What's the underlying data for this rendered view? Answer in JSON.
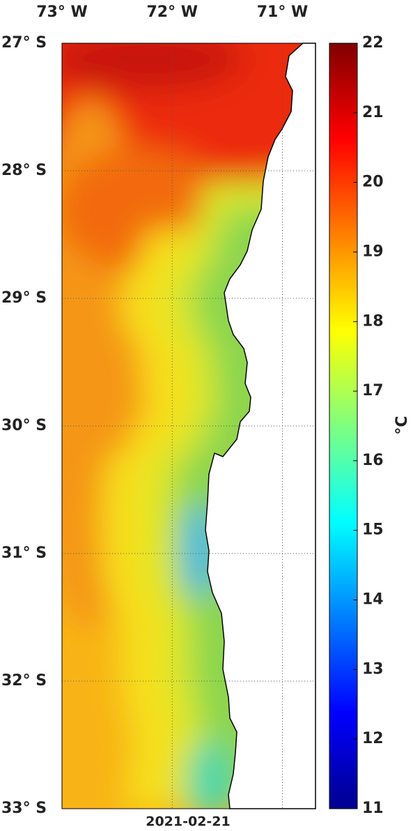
{
  "map": {
    "date": "2021-02-21",
    "colorbar_label": "°C",
    "lon_range": [
      -73,
      -70.7
    ],
    "lat_range": [
      -27,
      -33
    ],
    "lon_ticks": [
      {
        "value": -73,
        "label": "73° W"
      },
      {
        "value": -72,
        "label": "72° W"
      },
      {
        "value": -71,
        "label": "71° W"
      }
    ],
    "lat_ticks": [
      {
        "value": -27,
        "label": "27° S"
      },
      {
        "value": -28,
        "label": "28° S"
      },
      {
        "value": -29,
        "label": "29° S"
      },
      {
        "value": -30,
        "label": "30° S"
      },
      {
        "value": -31,
        "label": "31° S"
      },
      {
        "value": -32,
        "label": "32° S"
      },
      {
        "value": -33,
        "label": "33° S"
      }
    ],
    "colorbar_range": [
      11,
      22
    ],
    "colorbar_ticks": [
      11,
      12,
      13,
      14,
      15,
      16,
      17,
      18,
      19,
      20,
      21,
      22
    ]
  }
}
